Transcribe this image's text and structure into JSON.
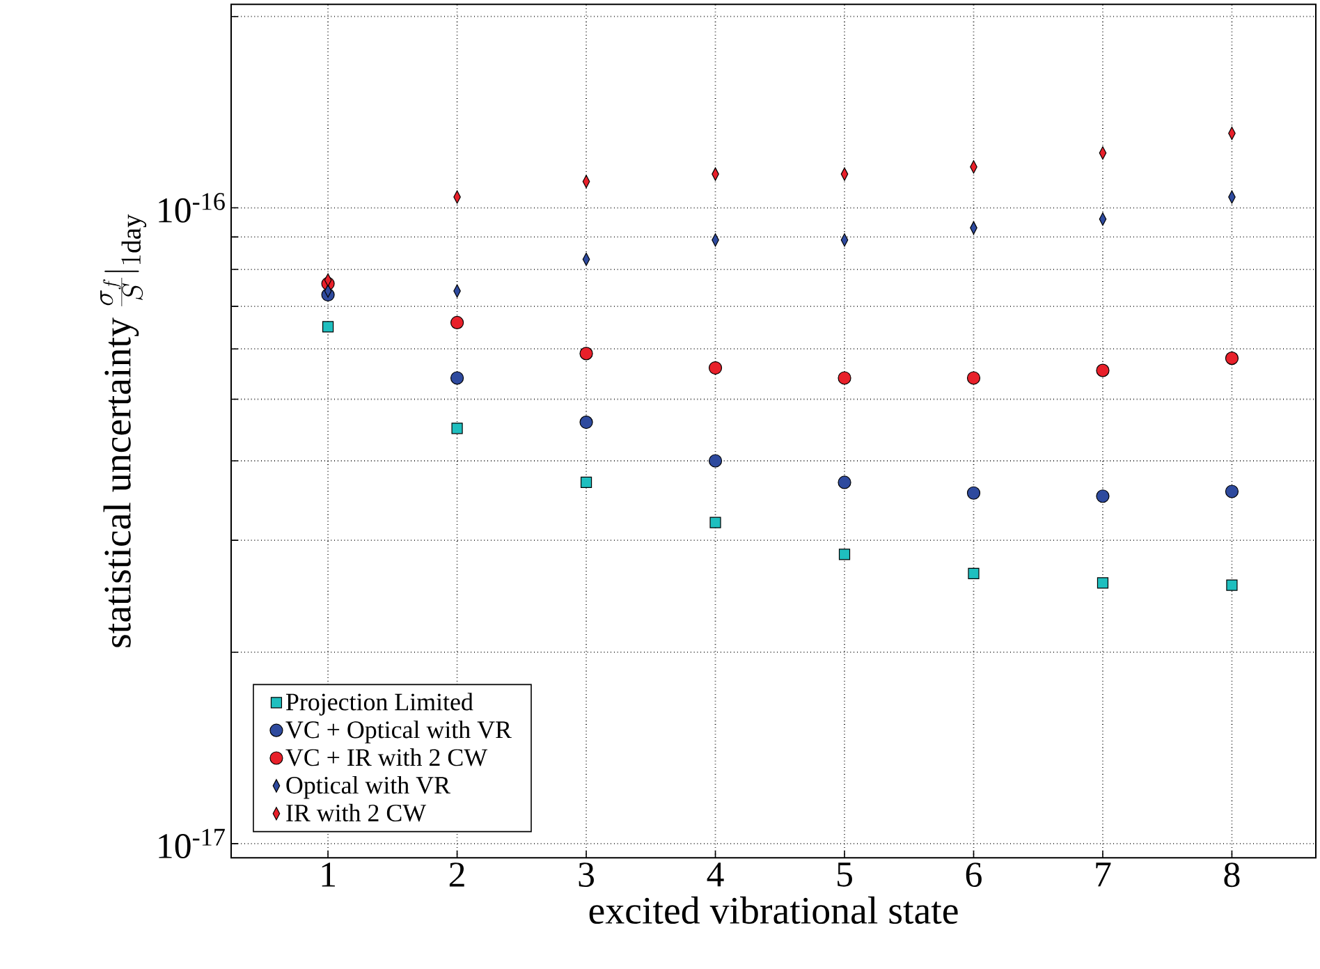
{
  "chart_data": {
    "type": "scatter",
    "xlabel": "excited vibrational state",
    "ylabel": "\\mbox{statistical uncertainty }\\frac{\\sigma_f}{S}\\Big|_{1\\mathrm{day}}",
    "x": [
      1,
      2,
      3,
      4,
      5,
      6,
      7,
      8
    ],
    "xlim": [
      0.25,
      8.65
    ],
    "xticks": [
      1,
      2,
      3,
      4,
      5,
      6,
      7,
      8
    ],
    "ylim": [
      9.5e-18,
      2.09e-16
    ],
    "log": "y",
    "yticks": [
      {
        "value": 1e-17,
        "label": "10$^{-17}$"
      },
      {
        "value": 2e-17,
        "label": null
      },
      {
        "value": 3e-17,
        "label": null
      },
      {
        "value": 4e-17,
        "label": null
      },
      {
        "value": 5e-17,
        "label": null
      },
      {
        "value": 6e-17,
        "label": null
      },
      {
        "value": 7e-17,
        "label": null
      },
      {
        "value": 8e-17,
        "label": null
      },
      {
        "value": 9e-17,
        "label": null
      },
      {
        "value": 1e-16,
        "label": "10$^{-16}$"
      },
      {
        "value": 2e-16,
        "label": null
      }
    ],
    "grid": true,
    "legend": "bottom left",
    "series": [
      {
        "name": "Projection Limited",
        "color": "#1fbfbf",
        "marker": "square",
        "values": [
          6.5e-17,
          4.5e-17,
          3.7e-17,
          3.2e-17,
          2.85e-17,
          2.66e-17,
          2.57e-17,
          2.55e-17
        ]
      },
      {
        "name": "VC + Optical with VR",
        "color": "#2e4a9e",
        "marker": "circle",
        "values": [
          7.3e-17,
          5.4e-17,
          4.6e-17,
          4e-17,
          3.7e-17,
          3.56e-17,
          3.52e-17,
          3.58e-17
        ]
      },
      {
        "name": "VC + IR with 2 CW",
        "color": "#e8202a",
        "marker": "circle",
        "values": [
          7.6e-17,
          6.6e-17,
          5.9e-17,
          5.6e-17,
          5.4e-17,
          5.4e-17,
          5.55e-17,
          5.8e-17
        ]
      },
      {
        "name": "Optical with VR",
        "color": "#2e4a9e",
        "marker": "diamond",
        "values": [
          7.4e-17,
          7.4e-17,
          8.3e-17,
          8.9e-17,
          8.9e-17,
          9.3e-17,
          9.6e-17,
          1.04e-16
        ]
      },
      {
        "name": "IR with 2 CW",
        "color": "#e8202a",
        "marker": "diamond",
        "values": [
          7.7e-17,
          1.04e-16,
          1.1e-16,
          1.13e-16,
          1.13e-16,
          1.16e-16,
          1.22e-16,
          1.31e-16
        ]
      }
    ]
  }
}
